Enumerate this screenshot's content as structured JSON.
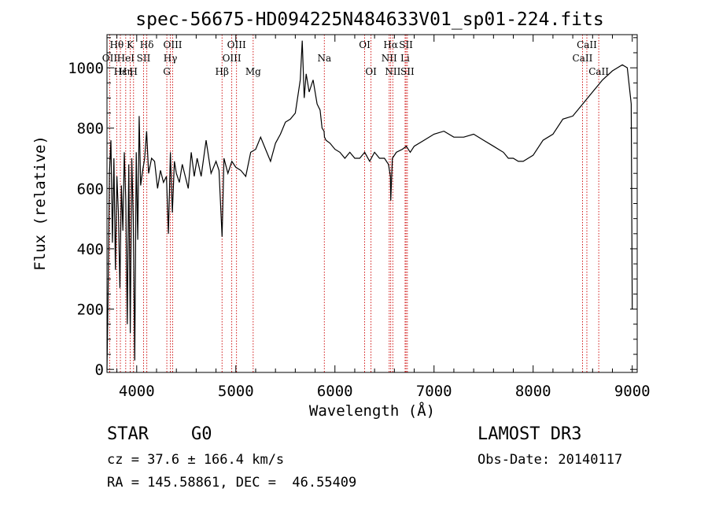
{
  "chart_data": {
    "type": "line",
    "title": "spec-56675-HD094225N484633V01_sp01-224.fits",
    "xlabel": "Wavelength (Å)",
    "ylabel": "Flux (relative)",
    "xlim": [
      3700,
      9050
    ],
    "ylim": [
      -10,
      1110
    ],
    "xticks": [
      4000,
      5000,
      6000,
      7000,
      8000,
      9000
    ],
    "yticks": [
      0,
      200,
      400,
      600,
      800,
      1000
    ],
    "grid": false,
    "series": [
      {
        "x": [
          3700,
          3710,
          3725,
          3740,
          3755,
          3770,
          3785,
          3800,
          3815,
          3830,
          3845,
          3860,
          3875,
          3890,
          3905,
          3920,
          3935,
          3950,
          3965,
          3980,
          3995,
          4010,
          4025,
          4040,
          4060,
          4080,
          4100,
          4120,
          4150,
          4180,
          4210,
          4240,
          4270,
          4300,
          4320,
          4340,
          4360,
          4380,
          4400,
          4430,
          4460,
          4490,
          4520,
          4550,
          4580,
          4610,
          4650,
          4700,
          4750,
          4800,
          4830,
          4861,
          4880,
          4920,
          4960,
          5000,
          5050,
          5100,
          5150,
          5200,
          5250,
          5300,
          5350,
          5400,
          5450,
          5500,
          5550,
          5600,
          5650,
          5670,
          5690,
          5710,
          5740,
          5780,
          5820,
          5850,
          5870,
          5890,
          5895,
          5910,
          5950,
          6000,
          6050,
          6100,
          6150,
          6200,
          6250,
          6300,
          6350,
          6400,
          6450,
          6500,
          6540,
          6560,
          6563,
          6580,
          6620,
          6680,
          6720,
          6760,
          6800,
          6900,
          7000,
          7100,
          7200,
          7300,
          7400,
          7500,
          7600,
          7700,
          7750,
          7800,
          7850,
          7900,
          7950,
          8000,
          8100,
          8200,
          8300,
          8400,
          8500,
          8600,
          8700,
          8800,
          8850,
          8900,
          8950,
          8990,
          9000
        ],
        "y": [
          0,
          230,
          650,
          760,
          420,
          700,
          330,
          640,
          520,
          270,
          610,
          460,
          720,
          560,
          150,
          680,
          120,
          700,
          500,
          30,
          720,
          430,
          840,
          610,
          660,
          700,
          790,
          650,
          700,
          690,
          600,
          660,
          620,
          640,
          450,
          720,
          520,
          690,
          650,
          620,
          680,
          640,
          600,
          720,
          640,
          700,
          640,
          760,
          650,
          690,
          660,
          440,
          700,
          650,
          690,
          670,
          660,
          640,
          720,
          730,
          770,
          730,
          690,
          750,
          780,
          820,
          830,
          850,
          960,
          1090,
          900,
          980,
          920,
          960,
          880,
          860,
          800,
          790,
          770,
          760,
          750,
          730,
          720,
          700,
          720,
          700,
          700,
          720,
          690,
          720,
          700,
          700,
          680,
          640,
          560,
          700,
          720,
          730,
          740,
          720,
          740,
          760,
          780,
          790,
          770,
          770,
          780,
          760,
          740,
          720,
          700,
          700,
          690,
          690,
          700,
          710,
          760,
          780,
          830,
          840,
          880,
          920,
          960,
          990,
          1000,
          1010,
          1000,
          880,
          200
        ]
      }
    ],
    "line_labels": [
      {
        "text": "Hθ",
        "x": 3798,
        "row": 0
      },
      {
        "text": "K",
        "x": 3934,
        "row": 0
      },
      {
        "text": "Hδ",
        "x": 4102,
        "row": 0
      },
      {
        "text": "OIII",
        "x": 4363,
        "row": 0
      },
      {
        "text": "OIII",
        "x": 5007,
        "row": 0
      },
      {
        "text": "OI",
        "x": 6300,
        "row": 0
      },
      {
        "text": "Hα",
        "x": 6563,
        "row": 0
      },
      {
        "text": "SII",
        "x": 6717,
        "row": 0
      },
      {
        "text": "CaII",
        "x": 8542,
        "row": 0
      },
      {
        "text": "OII",
        "x": 3727,
        "row": 1
      },
      {
        "text": "HeI",
        "x": 3889,
        "row": 1
      },
      {
        "text": "SII",
        "x": 4069,
        "row": 1
      },
      {
        "text": "Hγ",
        "x": 4340,
        "row": 1
      },
      {
        "text": "OIII",
        "x": 4959,
        "row": 1
      },
      {
        "text": "Na",
        "x": 5893,
        "row": 1
      },
      {
        "text": "NII",
        "x": 6548,
        "row": 1
      },
      {
        "text": "Li",
        "x": 6708,
        "row": 1
      },
      {
        "text": "CaII",
        "x": 8498,
        "row": 1
      },
      {
        "text": "Hε",
        "x": 3835,
        "row": 2
      },
      {
        "text": "Hη",
        "x": 3889,
        "row": 2
      },
      {
        "text": "H",
        "x": 3968,
        "row": 2
      },
      {
        "text": "G",
        "x": 4304,
        "row": 2
      },
      {
        "text": "Hβ",
        "x": 4861,
        "row": 2
      },
      {
        "text": "Mg",
        "x": 5175,
        "row": 2
      },
      {
        "text": "OI",
        "x": 6364,
        "row": 2
      },
      {
        "text": "NII",
        "x": 6584,
        "row": 2
      },
      {
        "text": "SII",
        "x": 6731,
        "row": 2
      },
      {
        "text": "CaII",
        "x": 8662,
        "row": 2
      }
    ],
    "line_markers": [
      3727,
      3798,
      3835,
      3889,
      3934,
      3968,
      4069,
      4102,
      4304,
      4340,
      4363,
      4861,
      4959,
      5007,
      5175,
      5893,
      6300,
      6364,
      6548,
      6563,
      6584,
      6708,
      6717,
      6731,
      8498,
      8542,
      8662
    ]
  },
  "info": {
    "class_label": "STAR",
    "subclass": "G0",
    "survey": "LAMOST DR3",
    "cz": "cz = 37.6 ± 166.4 km/s",
    "obs_date": "Obs-Date: 20140117",
    "radec": "RA = 145.58861, DEC =  46.55409"
  },
  "colors": {
    "line": "#000000",
    "markers": "#cc0000"
  }
}
